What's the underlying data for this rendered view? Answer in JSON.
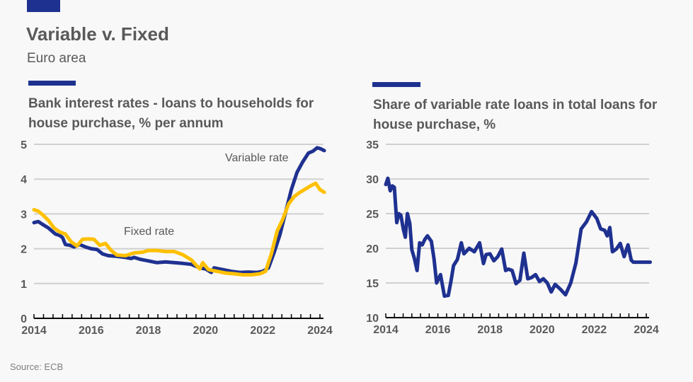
{
  "header": {
    "title": "Variable v. Fixed",
    "subtitle": "Euro area"
  },
  "footer": {
    "source": "Source: ECB"
  },
  "colors": {
    "variable": "#1f3190",
    "fixed": "#ffc000",
    "accent": "#1f3190",
    "grid": "#d0d0d0"
  },
  "chart_data": [
    {
      "type": "line",
      "title": "Bank interest rates - loans to households for house purchase, % per annum",
      "xlabel": "",
      "ylabel": "% per annum",
      "xlim": [
        2014,
        2024.3
      ],
      "ylim": [
        0,
        5
      ],
      "yticks": [
        "0",
        "1",
        "2",
        "3",
        "4",
        "5"
      ],
      "xticks": [
        "2014",
        "2016",
        "2018",
        "2020",
        "2022",
        "2024"
      ],
      "grid": true,
      "annotations": [
        {
          "text": "Variable rate",
          "series": "Variable rate"
        },
        {
          "text": "Fixed rate",
          "series": "Fixed rate"
        }
      ],
      "series": [
        {
          "name": "Variable rate",
          "color": "#1f3190",
          "x": [
            2014.0,
            2014.15,
            2014.3,
            2014.5,
            2014.75,
            2014.9,
            2015.0,
            2015.1,
            2015.25,
            2015.4,
            2015.6,
            2015.8,
            2016.0,
            2016.2,
            2016.4,
            2016.6,
            2016.9,
            2017.2,
            2017.4,
            2017.5,
            2017.7,
            2018.0,
            2018.3,
            2018.6,
            2018.9,
            2019.2,
            2019.5,
            2019.8,
            2020.0,
            2020.2,
            2020.3,
            2020.6,
            2020.9,
            2021.2,
            2021.5,
            2021.8,
            2022.0,
            2022.2,
            2022.4,
            2022.6,
            2022.8,
            2023.0,
            2023.2,
            2023.4,
            2023.6,
            2023.75,
            2023.9,
            2024.0,
            2024.15
          ],
          "values": [
            2.75,
            2.78,
            2.7,
            2.6,
            2.42,
            2.38,
            2.32,
            2.12,
            2.1,
            2.05,
            2.12,
            2.05,
            2.0,
            1.98,
            1.85,
            1.8,
            1.78,
            1.75,
            1.72,
            1.75,
            1.7,
            1.65,
            1.6,
            1.62,
            1.6,
            1.58,
            1.55,
            1.45,
            1.42,
            1.32,
            1.45,
            1.4,
            1.35,
            1.32,
            1.33,
            1.32,
            1.35,
            1.45,
            1.9,
            2.4,
            3.05,
            3.7,
            4.2,
            4.5,
            4.75,
            4.8,
            4.9,
            4.88,
            4.82
          ]
        },
        {
          "name": "Fixed rate",
          "color": "#ffc000",
          "x": [
            2014.0,
            2014.15,
            2014.3,
            2014.5,
            2014.7,
            2014.9,
            2015.1,
            2015.3,
            2015.5,
            2015.7,
            2015.9,
            2016.1,
            2016.3,
            2016.5,
            2016.7,
            2016.9,
            2017.2,
            2017.5,
            2017.8,
            2018.0,
            2018.3,
            2018.6,
            2018.9,
            2019.2,
            2019.5,
            2019.7,
            2019.8,
            2019.9,
            2020.1,
            2020.4,
            2020.7,
            2021.0,
            2021.3,
            2021.6,
            2021.9,
            2022.1,
            2022.3,
            2022.5,
            2022.7,
            2022.9,
            2023.1,
            2023.3,
            2023.5,
            2023.7,
            2023.85,
            2024.0,
            2024.15
          ],
          "values": [
            3.12,
            3.08,
            2.98,
            2.82,
            2.6,
            2.48,
            2.42,
            2.2,
            2.08,
            2.27,
            2.28,
            2.27,
            2.1,
            2.15,
            1.95,
            1.82,
            1.8,
            1.88,
            1.9,
            1.95,
            1.95,
            1.92,
            1.92,
            1.83,
            1.68,
            1.5,
            1.42,
            1.6,
            1.4,
            1.35,
            1.3,
            1.28,
            1.25,
            1.25,
            1.28,
            1.35,
            1.85,
            2.5,
            2.85,
            3.28,
            3.5,
            3.62,
            3.72,
            3.82,
            3.88,
            3.7,
            3.62
          ]
        }
      ]
    },
    {
      "type": "line",
      "title": "Share of variable rate loans in total loans for house purchase, %",
      "xlabel": "",
      "ylabel": "%",
      "xlim": [
        2014,
        2024.3
      ],
      "ylim": [
        10,
        35
      ],
      "yticks": [
        "10",
        "15",
        "20",
        "25",
        "30",
        "35"
      ],
      "xticks": [
        "2014",
        "2016",
        "2018",
        "2020",
        "2022",
        "2024"
      ],
      "grid": true,
      "series": [
        {
          "name": "Share of variable rate loans",
          "color": "#1f3190",
          "x": [
            2014.0,
            2014.08,
            2014.17,
            2014.25,
            2014.33,
            2014.42,
            2014.5,
            2014.58,
            2014.67,
            2014.75,
            2014.83,
            2014.92,
            2015.0,
            2015.1,
            2015.2,
            2015.3,
            2015.4,
            2015.5,
            2015.6,
            2015.75,
            2015.85,
            2015.95,
            2016.1,
            2016.25,
            2016.4,
            2016.5,
            2016.6,
            2016.75,
            2016.9,
            2017.0,
            2017.2,
            2017.4,
            2017.6,
            2017.75,
            2017.85,
            2018.0,
            2018.15,
            2018.3,
            2018.45,
            2018.6,
            2018.7,
            2018.85,
            2019.0,
            2019.15,
            2019.3,
            2019.45,
            2019.6,
            2019.75,
            2019.9,
            2020.05,
            2020.2,
            2020.35,
            2020.5,
            2020.7,
            2020.9,
            2021.1,
            2021.3,
            2021.5,
            2021.7,
            2021.9,
            2022.1,
            2022.25,
            2022.4,
            2022.5,
            2022.6,
            2022.7,
            2022.85,
            2023.0,
            2023.15,
            2023.3,
            2023.42,
            2023.5,
            2023.6,
            2023.75,
            2023.85,
            2023.95,
            2024.05,
            2024.15
          ],
          "values": [
            29.2,
            30.1,
            28.3,
            29.0,
            28.8,
            23.7,
            25.0,
            24.8,
            22.8,
            21.6,
            25.0,
            23.6,
            19.8,
            18.5,
            16.8,
            20.8,
            20.5,
            21.3,
            21.8,
            21.0,
            18.5,
            15.0,
            16.2,
            13.1,
            13.2,
            15.2,
            17.5,
            18.4,
            20.8,
            19.2,
            20.0,
            19.5,
            20.8,
            17.8,
            19.1,
            19.2,
            18.2,
            18.8,
            19.9,
            16.8,
            17.0,
            16.8,
            14.9,
            15.4,
            19.3,
            15.6,
            15.8,
            16.2,
            15.2,
            15.6,
            15.0,
            13.7,
            14.8,
            14.1,
            13.3,
            15.0,
            17.9,
            22.8,
            23.8,
            25.3,
            24.3,
            22.8,
            22.6,
            21.8,
            23.0,
            19.5,
            19.9,
            20.7,
            18.8,
            20.5,
            18.3,
            18.0,
            18.0,
            18.0,
            18.0,
            18.0,
            18.0,
            18.0
          ]
        }
      ]
    }
  ]
}
